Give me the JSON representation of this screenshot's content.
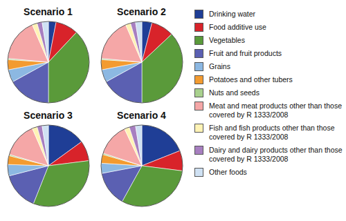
{
  "chart_data": [
    {
      "type": "pie",
      "title": "Scenario 1",
      "legend": "right",
      "categories": [
        "Drinking water",
        "Food additive use",
        "Vegetables",
        "Fruit and fruit products",
        "Grains",
        "Potatoes and other tubers",
        "Nuts and seeds",
        "Meat and meat products other than those covered by R 1333/2008",
        "Fish and fish products other than those covered by R 1333/2008",
        "Dairy and dairy products other than those covered by R 1333/2008",
        "Other foods"
      ],
      "values": [
        3,
        9,
        38,
        17,
        5,
        4,
        0.5,
        17,
        2,
        2,
        2.5
      ],
      "colors": [
        "#1f3e96",
        "#d8232a",
        "#5a9a3a",
        "#5b60b2",
        "#8cb8e2",
        "#f39b30",
        "#a9d18e",
        "#f5a7a7",
        "#fff3b5",
        "#a77fc0",
        "#cfe1f3"
      ]
    },
    {
      "type": "pie",
      "title": "Scenario 2",
      "categories": [
        "Drinking water",
        "Food additive use",
        "Vegetables",
        "Fruit and fruit products",
        "Grains",
        "Potatoes and other tubers",
        "Nuts and seeds",
        "Meat and meat products other than those covered by R 1333/2008",
        "Fish and fish products other than those covered by R 1333/2008",
        "Dairy and dairy products other than those covered by R 1333/2008",
        "Other foods"
      ],
      "values": [
        4,
        9,
        37,
        17,
        5,
        4,
        0.5,
        17,
        2,
        2,
        2.5
      ],
      "colors": [
        "#1f3e96",
        "#d8232a",
        "#5a9a3a",
        "#5b60b2",
        "#8cb8e2",
        "#f39b30",
        "#a9d18e",
        "#f5a7a7",
        "#fff3b5",
        "#a77fc0",
        "#cfe1f3"
      ]
    },
    {
      "type": "pie",
      "title": "Scenario 3",
      "categories": [
        "Drinking water",
        "Food additive use",
        "Vegetables",
        "Fruit and fruit products",
        "Grains",
        "Potatoes and other tubers",
        "Nuts and seeds",
        "Meat and meat products other than those covered by R 1333/2008",
        "Fish and fish products other than those covered by R 1333/2008",
        "Dairy and dairy products other than those covered by R 1333/2008",
        "Other foods"
      ],
      "values": [
        15,
        8,
        33,
        15,
        4.5,
        3.5,
        0.5,
        14,
        2,
        2,
        2.5
      ],
      "colors": [
        "#1f3e96",
        "#d8232a",
        "#5a9a3a",
        "#5b60b2",
        "#8cb8e2",
        "#f39b30",
        "#a9d18e",
        "#f5a7a7",
        "#fff3b5",
        "#a77fc0",
        "#cfe1f3"
      ]
    },
    {
      "type": "pie",
      "title": "Scenario 4",
      "categories": [
        "Drinking water",
        "Food additive use",
        "Vegetables",
        "Fruit and fruit products",
        "Grains",
        "Potatoes and other tubers",
        "Nuts and seeds",
        "Meat and meat products other than those covered by R 1333/2008",
        "Fish and fish products other than those covered by R 1333/2008",
        "Dairy and dairy products other than those covered by R 1333/2008",
        "Other foods"
      ],
      "values": [
        19,
        8,
        31,
        14,
        4,
        3.5,
        0.5,
        13,
        2,
        2.5,
        2.5
      ],
      "colors": [
        "#1f3e96",
        "#d8232a",
        "#5a9a3a",
        "#5b60b2",
        "#8cb8e2",
        "#f39b30",
        "#a9d18e",
        "#f5a7a7",
        "#fff3b5",
        "#a77fc0",
        "#cfe1f3"
      ]
    }
  ]
}
